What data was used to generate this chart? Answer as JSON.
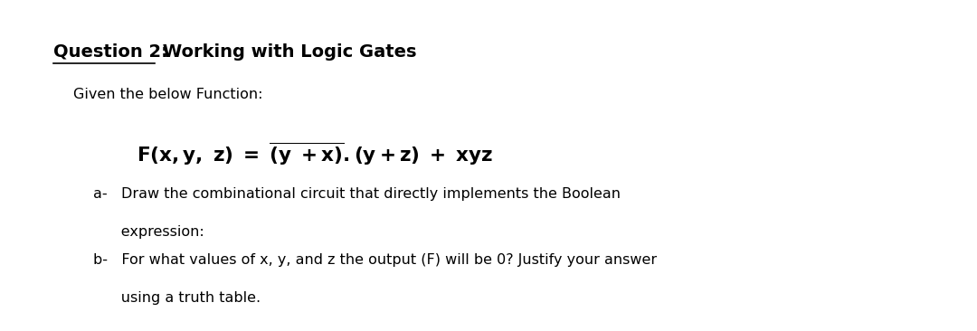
{
  "title_q": "Question 2:",
  "title_rest": " Working with Logic Gates",
  "given_text": "Given the below Function:",
  "item_a_line1": "a-   Draw the combinational circuit that directly implements the Boolean",
  "item_a_line2": "      expression:",
  "item_b_line1": "b-   For what values of x, y, and z the output (F) will be 0? Justify your answer",
  "item_b_line2": "      using a truth table.",
  "bg_color": "#ffffff",
  "text_color": "#000000",
  "title_fontsize": 14,
  "body_fontsize": 11.5,
  "formula_fontsize": 15.5
}
